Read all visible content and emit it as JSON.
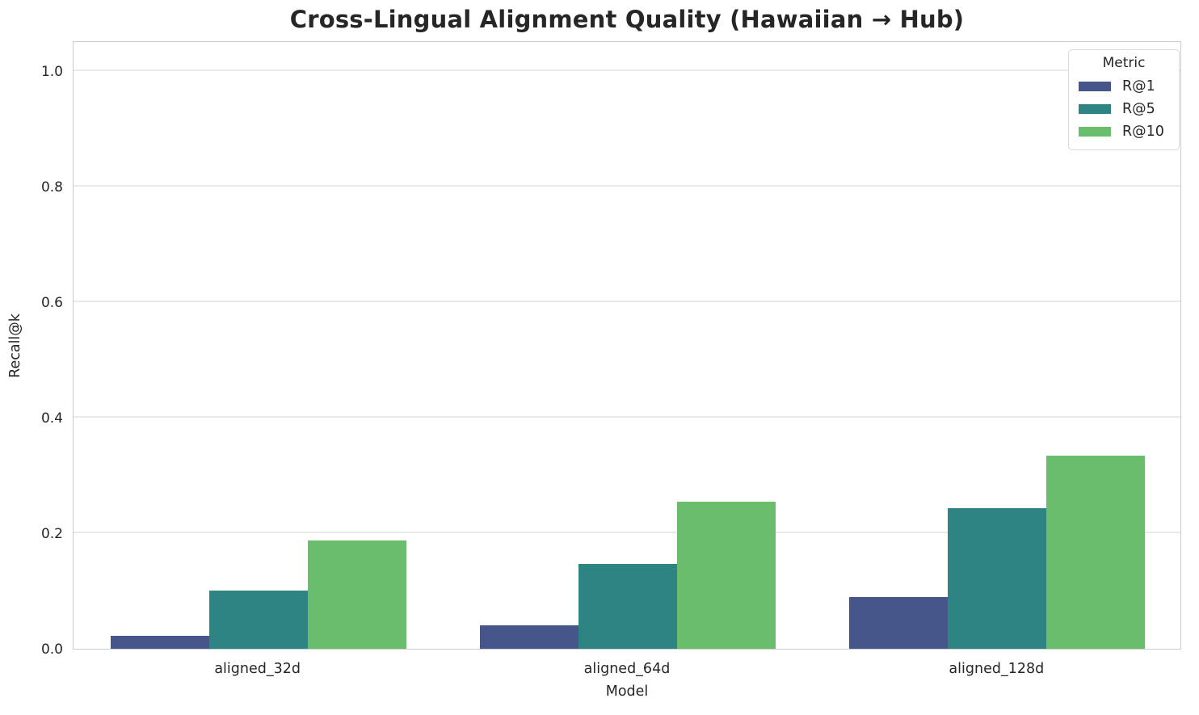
{
  "chart_data": {
    "type": "bar",
    "title": "Cross-Lingual Alignment Quality (Hawaiian → Hub)",
    "xlabel": "Model",
    "ylabel": "Recall@k",
    "legend_title": "Metric",
    "legend_position": "upper right",
    "grid": true,
    "background": "#ffffff",
    "ylim": [
      0,
      1.053
    ],
    "yticks": [
      0.0,
      0.2,
      0.4,
      0.6,
      0.8,
      1.0
    ],
    "ytick_labels": [
      "0.0",
      "0.2",
      "0.4",
      "0.6",
      "0.8",
      "1.0"
    ],
    "categories": [
      "aligned_32d",
      "aligned_64d",
      "aligned_128d"
    ],
    "series": [
      {
        "name": "R@1",
        "color": "#46568b",
        "values": [
          0.023,
          0.04,
          0.089
        ]
      },
      {
        "name": "R@5",
        "color": "#2e8482",
        "values": [
          0.101,
          0.147,
          0.243
        ]
      },
      {
        "name": "R@10",
        "color": "#69bd6d",
        "values": [
          0.187,
          0.255,
          0.334
        ]
      }
    ]
  }
}
